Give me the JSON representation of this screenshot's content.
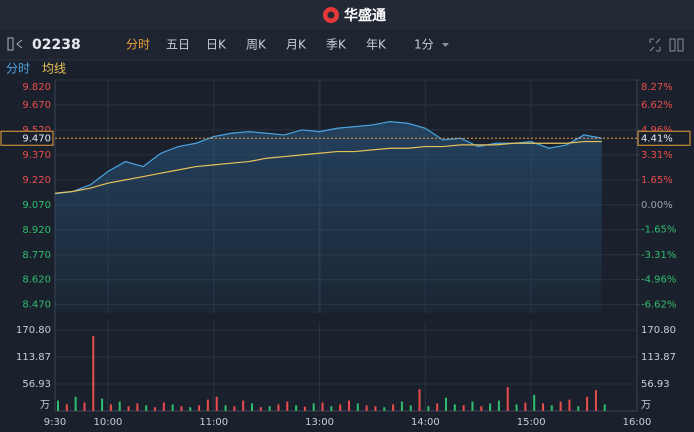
{
  "header": {
    "logo": "华盛通"
  },
  "toolbar": {
    "symbol": "02238",
    "tabs": [
      "分时",
      "五日",
      "日K",
      "周K",
      "月K",
      "季K",
      "年K"
    ],
    "active_tab": 0,
    "interval": "1分"
  },
  "chart_data": [
    {
      "type": "line",
      "x": [
        0,
        10,
        20,
        30,
        40,
        50,
        60,
        70,
        80,
        90,
        100,
        110,
        120,
        130,
        140,
        150,
        160,
        170,
        180,
        190,
        200,
        210,
        220,
        230,
        240,
        250,
        260,
        270,
        280,
        290,
        300,
        310
      ],
      "series": [
        {
          "name": "分时",
          "color": "#4aa3df",
          "values": [
            9.136,
            9.15,
            9.19,
            9.27,
            9.33,
            9.3,
            9.38,
            9.42,
            9.44,
            9.48,
            9.5,
            9.51,
            9.5,
            9.49,
            9.52,
            9.51,
            9.53,
            9.54,
            9.55,
            9.57,
            9.56,
            9.53,
            9.46,
            9.47,
            9.42,
            9.44,
            9.44,
            9.45,
            9.41,
            9.43,
            9.49,
            9.47
          ]
        },
        {
          "name": "均线",
          "color": "#e8c25a",
          "values": [
            9.14,
            9.15,
            9.17,
            9.2,
            9.22,
            9.24,
            9.26,
            9.28,
            9.3,
            9.31,
            9.32,
            9.33,
            9.35,
            9.36,
            9.37,
            9.38,
            9.39,
            9.39,
            9.4,
            9.41,
            9.41,
            9.42,
            9.42,
            9.43,
            9.43,
            9.43,
            9.44,
            9.44,
            9.44,
            9.44,
            9.45,
            9.45
          ]
        }
      ],
      "xlim": [
        0,
        330
      ],
      "xticks": [
        {
          "value": 0,
          "label": "9:30"
        },
        {
          "value": 30,
          "label": "10:00"
        },
        {
          "value": 90,
          "label": "11:00"
        },
        {
          "value": 150,
          "label": "13:00"
        },
        {
          "value": 210,
          "label": "14:00"
        },
        {
          "value": 270,
          "label": "15:00"
        },
        {
          "value": 330,
          "label": "16:00"
        }
      ],
      "ylim": [
        8.42,
        9.82
      ],
      "yticks": [
        {
          "value": 9.82,
          "label": "9.820"
        },
        {
          "value": 9.67,
          "label": "9.670"
        },
        {
          "value": 9.52,
          "label": "9.520"
        },
        {
          "value": 9.37,
          "label": "9.370"
        },
        {
          "value": 9.22,
          "label": "9.220"
        },
        {
          "value": 9.07,
          "label": "9.070"
        },
        {
          "value": 8.92,
          "label": "8.920"
        },
        {
          "value": 8.77,
          "label": "8.770"
        },
        {
          "value": 8.62,
          "label": "8.620"
        },
        {
          "value": 8.47,
          "label": "8.470"
        }
      ],
      "y2lim": [
        -7.17,
        8.27
      ],
      "y2ticks": [
        {
          "value": 8.27,
          "label": "8.27%"
        },
        {
          "value": 6.62,
          "label": "6.62%"
        },
        {
          "value": 4.96,
          "label": "4.96%"
        },
        {
          "value": 3.31,
          "label": "3.31%"
        },
        {
          "value": 1.65,
          "label": "1.65%"
        },
        {
          "value": 0,
          "label": "0.00%"
        },
        {
          "value": -1.65,
          "label": "-1.65%"
        },
        {
          "value": -3.31,
          "label": "-3.31%"
        },
        {
          "value": -4.96,
          "label": "-4.96%"
        },
        {
          "value": -6.62,
          "label": "-6.62%"
        }
      ],
      "current_price": {
        "value": 9.47,
        "label": "9.470"
      },
      "current_change": {
        "value": 4.41,
        "label": "4.41%"
      },
      "up_color": "#e84c4c",
      "down_color": "#2fbd6e",
      "grid": true
    },
    {
      "type": "bar",
      "x": [
        0,
        5,
        10,
        15,
        20,
        25,
        30,
        35,
        40,
        45,
        50,
        55,
        60,
        65,
        70,
        75,
        80,
        85,
        90,
        95,
        100,
        105,
        110,
        115,
        120,
        125,
        130,
        135,
        140,
        145,
        150,
        155,
        160,
        165,
        170,
        175,
        180,
        185,
        190,
        195,
        200,
        205,
        210,
        215,
        220,
        225,
        230,
        235,
        240,
        245,
        250,
        255,
        260,
        265,
        270,
        275,
        280,
        285,
        290,
        295,
        300,
        305,
        310
      ],
      "values": [
        22,
        14,
        30,
        18,
        158,
        26,
        14,
        20,
        10,
        16,
        12,
        8,
        18,
        14,
        10,
        8,
        12,
        24,
        30,
        12,
        10,
        22,
        16,
        8,
        10,
        14,
        20,
        12,
        9,
        16,
        18,
        10,
        14,
        22,
        16,
        12,
        10,
        8,
        14,
        20,
        12,
        46,
        10,
        16,
        28,
        14,
        12,
        20,
        10,
        16,
        22,
        50,
        14,
        18,
        34,
        16,
        12,
        20,
        24,
        10,
        30,
        44,
        14
      ],
      "colors": [
        "#2fbd6e",
        "#e84c4c",
        "#2fbd6e",
        "#e84c4c",
        "#e84c4c",
        "#2fbd6e",
        "#e84c4c",
        "#2fbd6e",
        "#e84c4c",
        "#e84c4c",
        "#2fbd6e",
        "#e84c4c",
        "#e84c4c",
        "#2fbd6e",
        "#e84c4c",
        "#2fbd6e",
        "#e84c4c",
        "#e84c4c",
        "#e84c4c",
        "#2fbd6e",
        "#e84c4c",
        "#e84c4c",
        "#2fbd6e",
        "#e84c4c",
        "#2fbd6e",
        "#e84c4c",
        "#e84c4c",
        "#2fbd6e",
        "#e84c4c",
        "#2fbd6e",
        "#e84c4c",
        "#2fbd6e",
        "#e84c4c",
        "#e84c4c",
        "#2fbd6e",
        "#e84c4c",
        "#e84c4c",
        "#2fbd6e",
        "#e84c4c",
        "#2fbd6e",
        "#2fbd6e",
        "#e84c4c",
        "#2fbd6e",
        "#e84c4c",
        "#2fbd6e",
        "#2fbd6e",
        "#e84c4c",
        "#2fbd6e",
        "#e84c4c",
        "#2fbd6e",
        "#2fbd6e",
        "#e84c4c",
        "#2fbd6e",
        "#e84c4c",
        "#2fbd6e",
        "#e84c4c",
        "#2fbd6e",
        "#e84c4c",
        "#e84c4c",
        "#2fbd6e",
        "#e84c4c",
        "#e84c4c",
        "#2fbd6e"
      ],
      "xlim": [
        0,
        330
      ],
      "ylim": [
        0,
        187.7
      ],
      "yticks": [
        {
          "value": 170.8,
          "label": "170.80"
        },
        113.87,
        56.93
      ],
      "unit": "万"
    }
  ]
}
